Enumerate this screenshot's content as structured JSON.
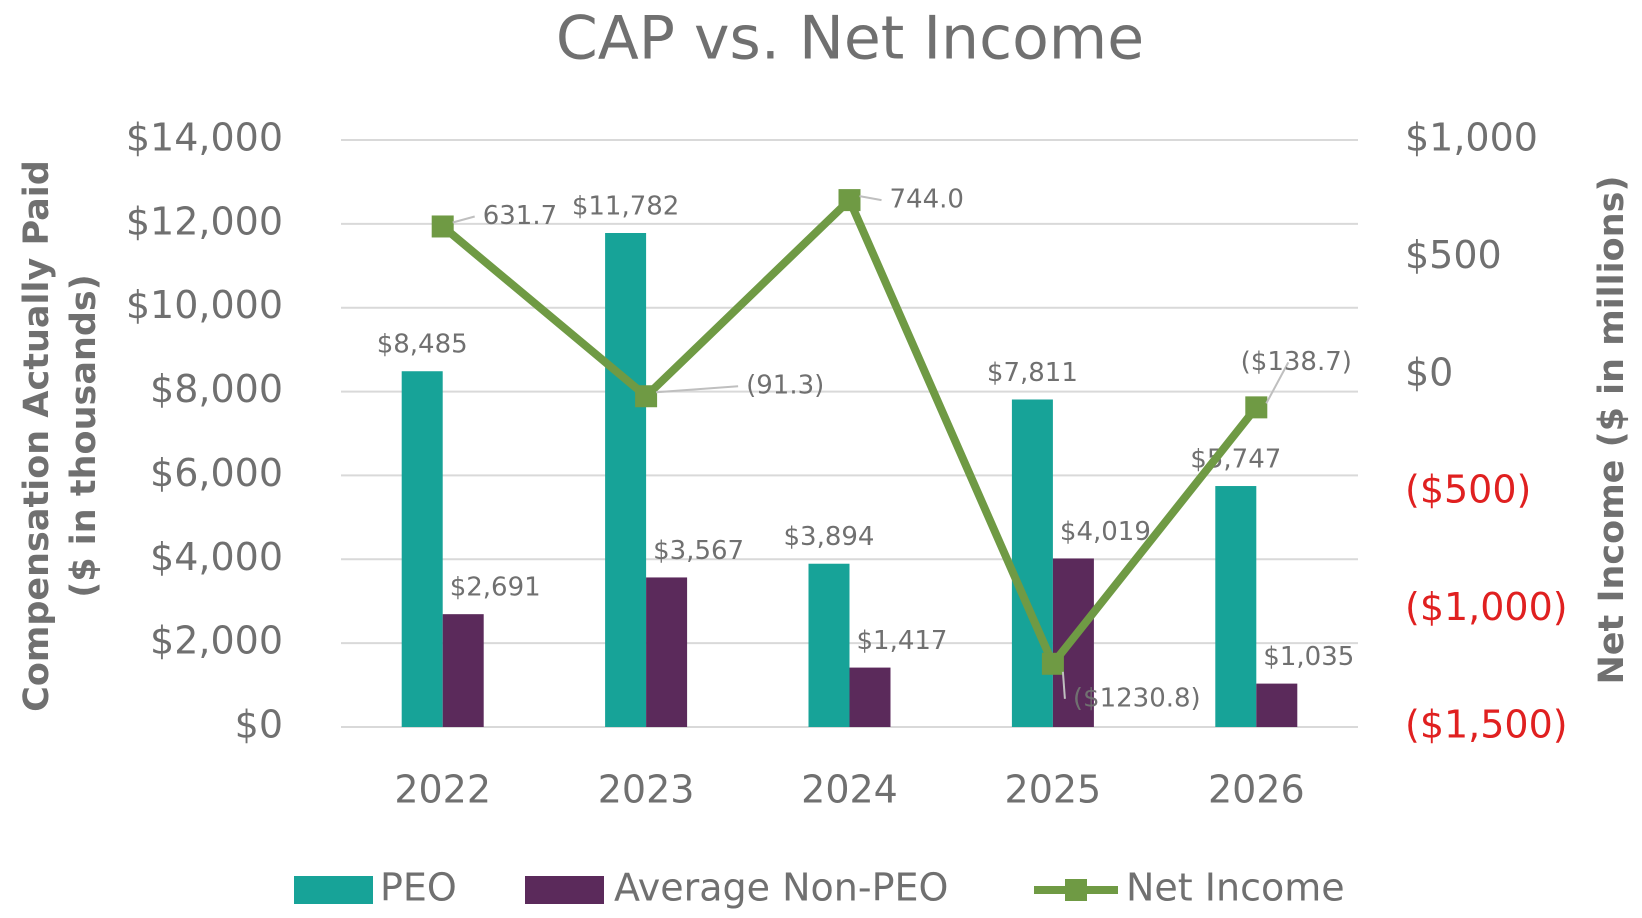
{
  "chart_data": {
    "type": "bar",
    "title": "CAP vs. Net Income",
    "categories": [
      "2022",
      "2023",
      "2024",
      "2025",
      "2026"
    ],
    "series": [
      {
        "name": "PEO",
        "type": "bar",
        "color": "#17a398",
        "values": [
          8485,
          11782,
          3894,
          7811,
          5747
        ],
        "value_labels": [
          "$8,485",
          "$11,782",
          "$3,894",
          "$7,811",
          "$5,747"
        ]
      },
      {
        "name": "Average Non-PEO",
        "type": "bar",
        "color": "#5b2a5b",
        "values": [
          2691,
          3567,
          1417,
          4019,
          1035
        ],
        "value_labels": [
          "$2,691",
          "$3,567",
          "$1,417",
          "$4,019",
          "$1,035"
        ]
      },
      {
        "name": "Net Income",
        "type": "line",
        "axis": "y2",
        "color": "#6f9a44",
        "values": [
          631.7,
          -91.3,
          744.0,
          -1230.8,
          -138.7
        ],
        "value_labels": [
          "631.7",
          "(91.3)",
          "744.0",
          "($1230.8)",
          "($138.7)"
        ]
      }
    ],
    "ylabel": [
      "Compensation Actually Paid",
      "($ in thousands)"
    ],
    "y2label": "Net Income ($ in millions)",
    "ylim": [
      0,
      14000
    ],
    "yticks": [
      {
        "value": 0,
        "label": "$0"
      },
      {
        "value": 2000,
        "label": "$2,000"
      },
      {
        "value": 4000,
        "label": "$4,000"
      },
      {
        "value": 6000,
        "label": "$6,000"
      },
      {
        "value": 8000,
        "label": "$8,000"
      },
      {
        "value": 10000,
        "label": "$10,000"
      },
      {
        "value": 12000,
        "label": "$12,000"
      },
      {
        "value": 14000,
        "label": "$14,000"
      }
    ],
    "y2lim": [
      -1500,
      1000
    ],
    "y2ticks": [
      {
        "value": -1500,
        "label": "($1,500)"
      },
      {
        "value": -1000,
        "label": "($1,000)"
      },
      {
        "value": -500,
        "label": "($500)"
      },
      {
        "value": 0,
        "label": "$0"
      },
      {
        "value": 500,
        "label": "$500"
      },
      {
        "value": 1000,
        "label": "$1,000"
      }
    ],
    "y2_negative_tick_color": "#e02020",
    "grid": true,
    "legend": "bottom"
  }
}
